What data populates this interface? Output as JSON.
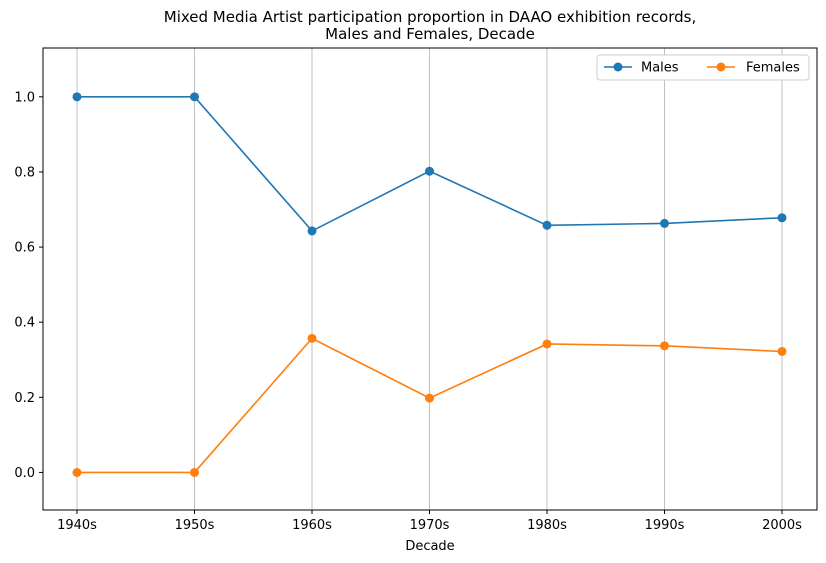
{
  "chart_data": {
    "type": "line",
    "title_line1": "Mixed Media Artist participation proportion in DAAO exhibition records,",
    "title_line2": "Males and Females, Decade",
    "xlabel": "Decade",
    "ylabel": "",
    "categories": [
      "1940s",
      "1950s",
      "1960s",
      "1970s",
      "1980s",
      "1990s",
      "2000s"
    ],
    "ylim": [
      -0.1,
      1.13
    ],
    "yticks": [
      0.0,
      0.2,
      0.4,
      0.6,
      0.8,
      1.0
    ],
    "ytick_labels": [
      "0.0",
      "0.2",
      "0.4",
      "0.6",
      "0.8",
      "1.0"
    ],
    "grid": "vertical",
    "legend_position": "top-right",
    "series": [
      {
        "name": "Males",
        "color": "#1f77b4",
        "values": [
          1.0,
          1.0,
          0.643,
          0.802,
          0.658,
          0.663,
          0.678
        ]
      },
      {
        "name": "Females",
        "color": "#ff7f0e",
        "values": [
          0.0,
          0.0,
          0.357,
          0.198,
          0.342,
          0.337,
          0.322
        ]
      }
    ]
  }
}
